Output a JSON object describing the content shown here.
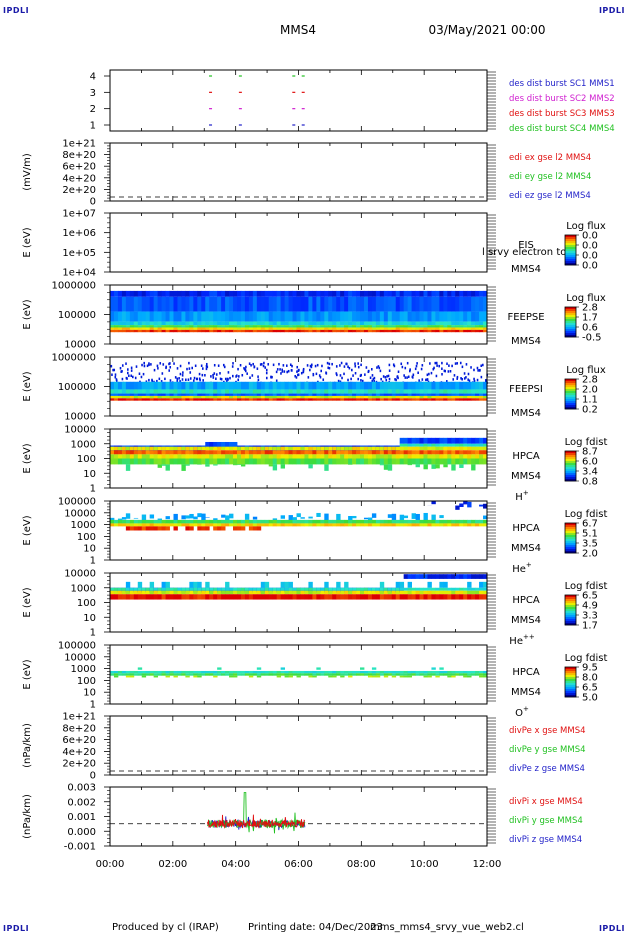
{
  "header": {
    "corner_tl": "IPDLI",
    "corner_tr": "IPDLI",
    "corner_bl": "IPDLI",
    "corner_br": "IPDLI",
    "spacecraft": "MMS4",
    "datetime": "03/May/2021 00:00"
  },
  "footer": {
    "produced_by": "Produced by cl (IRAP)",
    "printing_date": "Printing date: 04/Dec/2023",
    "script": "mms_mms4_srvy_vue_web2.cl"
  },
  "colors": {
    "blue": "#1f1fc8",
    "magenta": "#d020d0",
    "red": "#e01010",
    "green": "#20c020"
  },
  "chart_data": {
    "type": "multi-panel time series",
    "x_ticks": [
      "00:00",
      "02:00",
      "04:00",
      "06:00",
      "08:00",
      "10:00",
      "12:00"
    ],
    "xlim_hours": [
      0,
      12
    ],
    "panels": [
      {
        "id": "burst",
        "type": "scatter",
        "ylabel": "",
        "yticks": [
          "4",
          "3",
          "2",
          "1"
        ],
        "legend": [
          {
            "name": "des dist burst SC1 MMS1",
            "color": "#1f1fc8",
            "level": 1
          },
          {
            "name": "des dist burst SC2 MMS2",
            "color": "#d020d0",
            "level": 2
          },
          {
            "name": "des dist burst SC3 MMS3",
            "color": "#e01010",
            "level": 3
          },
          {
            "name": "des dist burst SC4 MMS4",
            "color": "#20c020",
            "level": 4
          }
        ],
        "burst_times_hours": [
          3.2,
          4.15,
          5.85,
          6.15
        ]
      },
      {
        "id": "edi",
        "type": "line",
        "ylabel": "(mV/m)",
        "yticks": [
          "1e+21",
          "8e+20",
          "6e+20",
          "4e+20",
          "2e+20",
          "0"
        ],
        "zero_line": true,
        "legend": [
          {
            "name": "edi ex gse l2 MMS4",
            "color": "#e01010"
          },
          {
            "name": "edi ey gse l2 MMS4",
            "color": "#20c020"
          },
          {
            "name": "edi ez gse l2 MMS4",
            "color": "#1f1fc8"
          }
        ]
      },
      {
        "id": "eis",
        "type": "heatmap",
        "ylabel": "E (eV)",
        "yticks": [
          "1e+07",
          "1e+06",
          "1e+05",
          "1e+04"
        ],
        "labels": [
          "EIS",
          "MMS4"
        ],
        "overlay_text": "l srvy electron to",
        "colorbar_title": "Log flux",
        "colorbar_ticks": [
          "0.0",
          "0.0",
          "0.0",
          "0.0"
        ],
        "fill": "empty"
      },
      {
        "id": "feepse",
        "type": "heatmap",
        "ylabel": "E (eV)",
        "yticks": [
          "1000000",
          "100000",
          "10000"
        ],
        "labels": [
          "FEEPSE",
          "MMS4"
        ],
        "colorbar_title": "Log flux",
        "colorbar_ticks": [
          "2.8",
          "1.7",
          "0.6",
          "-0.5"
        ],
        "fill": "feeps_electron"
      },
      {
        "id": "feepsi",
        "type": "heatmap",
        "ylabel": "E (eV)",
        "yticks": [
          "1000000",
          "100000",
          "10000"
        ],
        "labels": [
          "FEEPSI",
          "MMS4"
        ],
        "colorbar_title": "Log flux",
        "colorbar_ticks": [
          "2.8",
          "2.0",
          "1.1",
          "0.2"
        ],
        "fill": "feeps_ion"
      },
      {
        "id": "hpca_h",
        "type": "heatmap",
        "ylabel": "E (eV)",
        "yticks": [
          "10000",
          "1000",
          "100",
          "10",
          "1"
        ],
        "labels": [
          "HPCA",
          "MMS4"
        ],
        "species_base": "H",
        "species_sup": "+",
        "colorbar_title": "Log fdist",
        "colorbar_ticks": [
          "8.7",
          "6.0",
          "3.4",
          "0.8"
        ],
        "fill": "hpca_h"
      },
      {
        "id": "hpca_he",
        "type": "heatmap",
        "ylabel": "E (eV)",
        "yticks": [
          "100000",
          "10000",
          "1000",
          "100",
          "10",
          "1"
        ],
        "labels": [
          "HPCA",
          "MMS4"
        ],
        "species_base": "He",
        "species_sup": "+",
        "colorbar_title": "Log fdist",
        "colorbar_ticks": [
          "6.7",
          "5.1",
          "3.5",
          "2.0"
        ],
        "fill": "hpca_he"
      },
      {
        "id": "hpca_hepp",
        "type": "heatmap",
        "ylabel": "E (eV)",
        "yticks": [
          "10000",
          "1000",
          "100",
          "10",
          "1"
        ],
        "labels": [
          "HPCA",
          "MMS4"
        ],
        "species_base": "He",
        "species_sup": "++",
        "colorbar_title": "Log fdist",
        "colorbar_ticks": [
          "6.5",
          "4.9",
          "3.3",
          "1.7"
        ],
        "fill": "hpca_hepp"
      },
      {
        "id": "hpca_o",
        "type": "heatmap",
        "ylabel": "E (eV)",
        "yticks": [
          "100000",
          "10000",
          "1000",
          "100",
          "10",
          "1"
        ],
        "labels": [
          "HPCA",
          "MMS4"
        ],
        "species_base": "O",
        "species_sup": "+",
        "colorbar_title": "Log fdist",
        "colorbar_ticks": [
          "9.5",
          "8.0",
          "6.5",
          "5.0"
        ],
        "fill": "hpca_o"
      },
      {
        "id": "divpe",
        "type": "line",
        "ylabel": "(nPa/km)",
        "yticks": [
          "1e+21",
          "8e+20",
          "6e+20",
          "4e+20",
          "2e+20",
          "0"
        ],
        "zero_line": true,
        "legend": [
          {
            "name": "divPe x gse MMS4",
            "color": "#e01010"
          },
          {
            "name": "divPe y gse MMS4",
            "color": "#20c020"
          },
          {
            "name": "divPe z gse MMS4",
            "color": "#1f1fc8"
          }
        ]
      },
      {
        "id": "divpi",
        "type": "line",
        "ylabel": "(nPa/km)",
        "yticks": [
          "0.003",
          "0.002",
          "0.001",
          "0.000",
          "-0.001"
        ],
        "ylim": [
          -0.002,
          0.0033
        ],
        "zero_line": true,
        "data_range_hours": [
          3.1,
          6.2
        ],
        "legend": [
          {
            "name": "divPi x gse MMS4",
            "color": "#e01010"
          },
          {
            "name": "divPi y gse MMS4",
            "color": "#20c020"
          },
          {
            "name": "divPi z gse MMS4",
            "color": "#1f1fc8"
          }
        ]
      }
    ]
  }
}
